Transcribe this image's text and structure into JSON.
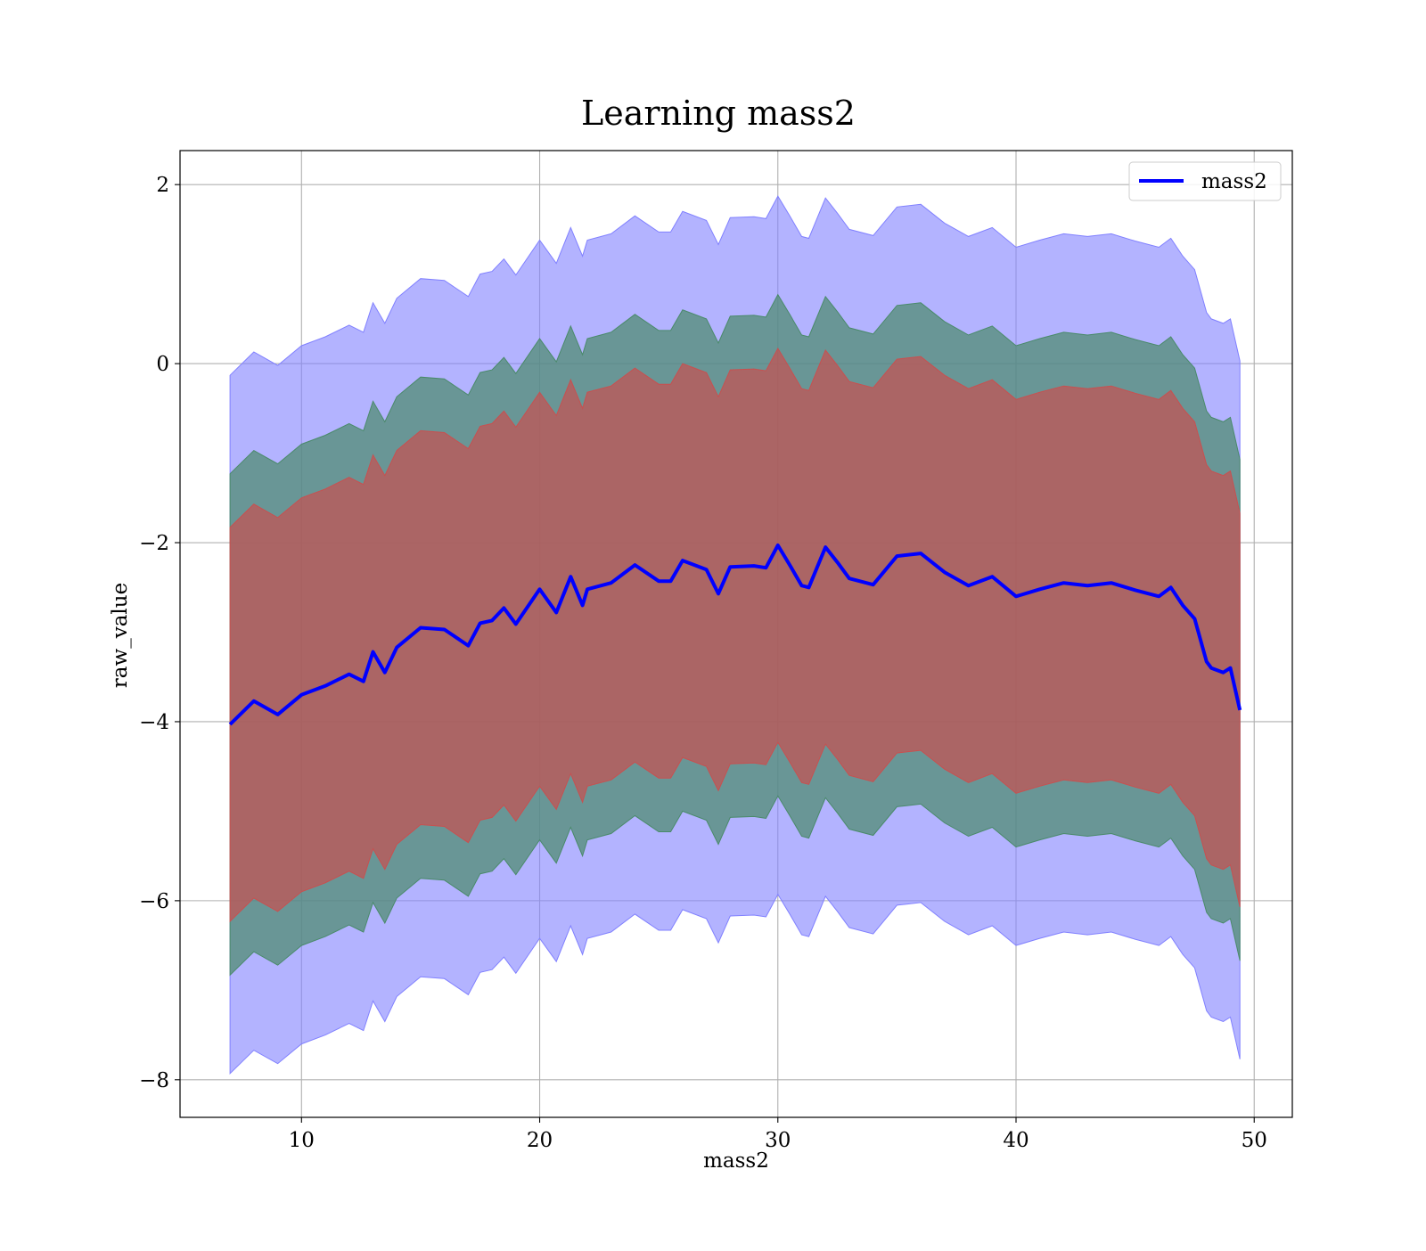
{
  "chart_data": {
    "type": "line",
    "title": "Learning mass2",
    "xlabel": "mass2",
    "ylabel": "raw_value",
    "xlim": [
      4.9,
      51.6
    ],
    "ylim": [
      -8.42,
      2.38
    ],
    "xticks": [
      10,
      20,
      30,
      40,
      50
    ],
    "yticks": [
      -8,
      -6,
      -4,
      -2,
      0,
      2
    ],
    "xtick_labels": [
      "10",
      "20",
      "30",
      "40",
      "50"
    ],
    "ytick_labels": [
      "−8",
      "−6",
      "−4",
      "−2",
      "0",
      "2"
    ],
    "grid": true,
    "legend": {
      "position": "upper right",
      "entries": [
        "mass2"
      ]
    },
    "colors": {
      "line": "#0000ff",
      "band_outer": "#8080ff",
      "band_middle": "#4a8a6a",
      "band_inner": "#c85050"
    },
    "x": [
      7.0,
      8.0,
      9.0,
      10.0,
      11.0,
      12.0,
      12.6,
      13.0,
      13.5,
      14.0,
      15.0,
      16.0,
      17.0,
      17.5,
      18.0,
      18.5,
      19.0,
      20.0,
      20.7,
      21.3,
      21.8,
      22.0,
      23.0,
      24.0,
      25.0,
      25.5,
      26.0,
      27.0,
      27.5,
      28.0,
      29.0,
      29.5,
      30.0,
      30.5,
      31.0,
      31.3,
      32.0,
      32.5,
      33.0,
      34.0,
      35.0,
      36.0,
      37.0,
      38.0,
      39.0,
      40.0,
      41.0,
      42.0,
      43.0,
      44.0,
      45.0,
      46.0,
      46.5,
      47.0,
      47.5,
      48.0,
      48.2,
      48.7,
      49.0,
      49.4
    ],
    "series": [
      {
        "name": "mass2",
        "role": "mean",
        "values": [
          -4.03,
          -3.77,
          -3.92,
          -3.7,
          -3.6,
          -3.47,
          -3.55,
          -3.22,
          -3.45,
          -3.17,
          -2.95,
          -2.97,
          -3.15,
          -2.9,
          -2.87,
          -2.73,
          -2.91,
          -2.52,
          -2.78,
          -2.38,
          -2.7,
          -2.52,
          -2.45,
          -2.25,
          -2.43,
          -2.43,
          -2.2,
          -2.3,
          -2.57,
          -2.27,
          -2.26,
          -2.28,
          -2.03,
          -2.25,
          -2.48,
          -2.5,
          -2.05,
          -2.22,
          -2.4,
          -2.47,
          -2.15,
          -2.12,
          -2.33,
          -2.48,
          -2.38,
          -2.6,
          -2.52,
          -2.45,
          -2.48,
          -2.45,
          -2.53,
          -2.6,
          -2.5,
          -2.7,
          -2.85,
          -3.33,
          -3.4,
          -3.45,
          -3.4,
          -3.87
        ]
      }
    ],
    "bands": [
      {
        "role": "outer",
        "offset": 3.9
      },
      {
        "role": "middle",
        "offset": 2.8
      },
      {
        "role": "inner",
        "offset": 2.2
      }
    ]
  }
}
